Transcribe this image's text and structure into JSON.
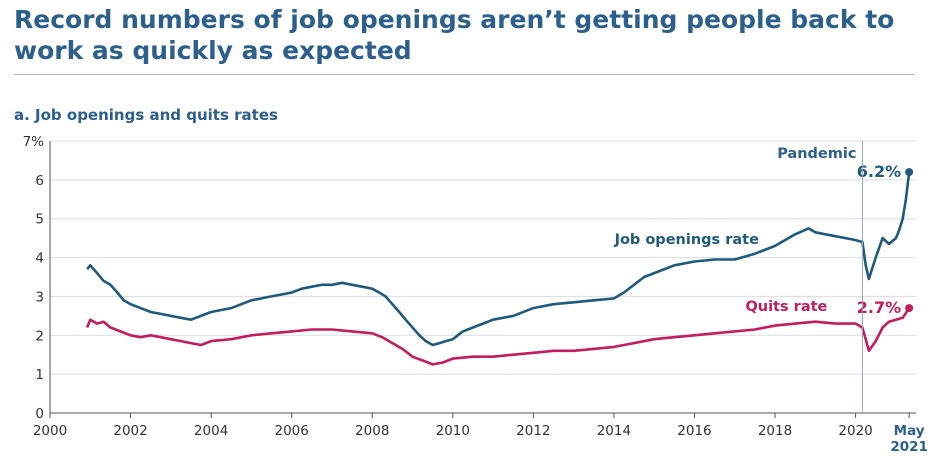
{
  "header": {
    "title": "Record numbers of job openings aren’t getting people back to work as quickly as expected",
    "subtitle": "a. Job openings and quits rates"
  },
  "colors": {
    "title": "#2d5f8c",
    "job_openings": "#1f5a7d",
    "quits": "#c21d5c",
    "grid": "#d8dde2",
    "pandemic_line": "#8fa8bf"
  },
  "chart_data": {
    "type": "line",
    "x_unit": "year",
    "xlim": [
      2000,
      2021.5
    ],
    "ylim": [
      0,
      7
    ],
    "y_ticks": [
      {
        "value": 0,
        "label": "0"
      },
      {
        "value": 1,
        "label": "1"
      },
      {
        "value": 2,
        "label": "2"
      },
      {
        "value": 3,
        "label": "3"
      },
      {
        "value": 4,
        "label": "4"
      },
      {
        "value": 5,
        "label": "5"
      },
      {
        "value": 6,
        "label": "6"
      },
      {
        "value": 7,
        "label": "7%"
      }
    ],
    "x_ticks": [
      {
        "value": 2000,
        "label": "2000"
      },
      {
        "value": 2002,
        "label": "2002"
      },
      {
        "value": 2004,
        "label": "2004"
      },
      {
        "value": 2006,
        "label": "2006"
      },
      {
        "value": 2008,
        "label": "2008"
      },
      {
        "value": 2010,
        "label": "2010"
      },
      {
        "value": 2012,
        "label": "2012"
      },
      {
        "value": 2014,
        "label": "2014"
      },
      {
        "value": 2016,
        "label": "2016"
      },
      {
        "value": 2018,
        "label": "2018"
      },
      {
        "value": 2020,
        "label": "2020"
      }
    ],
    "end_tick": {
      "value": 2021.33,
      "label": "May",
      "label2": "2021"
    },
    "grid": "horizontal",
    "annotations": {
      "pandemic": {
        "x": 2020.17,
        "label": "Pandemic"
      }
    },
    "series": [
      {
        "name": "Job openings rate",
        "color": "#1f5a7d",
        "end_label": "6.2%",
        "points": [
          [
            2000.92,
            3.7
          ],
          [
            2001.0,
            3.8
          ],
          [
            2001.17,
            3.6
          ],
          [
            2001.33,
            3.4
          ],
          [
            2001.5,
            3.3
          ],
          [
            2001.67,
            3.1
          ],
          [
            2001.83,
            2.9
          ],
          [
            2002.0,
            2.8
          ],
          [
            2002.25,
            2.7
          ],
          [
            2002.5,
            2.6
          ],
          [
            2002.75,
            2.55
          ],
          [
            2003.0,
            2.5
          ],
          [
            2003.25,
            2.45
          ],
          [
            2003.5,
            2.4
          ],
          [
            2003.75,
            2.5
          ],
          [
            2004.0,
            2.6
          ],
          [
            2004.25,
            2.65
          ],
          [
            2004.5,
            2.7
          ],
          [
            2004.75,
            2.8
          ],
          [
            2005.0,
            2.9
          ],
          [
            2005.25,
            2.95
          ],
          [
            2005.5,
            3.0
          ],
          [
            2005.75,
            3.05
          ],
          [
            2006.0,
            3.1
          ],
          [
            2006.25,
            3.2
          ],
          [
            2006.5,
            3.25
          ],
          [
            2006.75,
            3.3
          ],
          [
            2007.0,
            3.3
          ],
          [
            2007.25,
            3.35
          ],
          [
            2007.5,
            3.3
          ],
          [
            2007.75,
            3.25
          ],
          [
            2008.0,
            3.2
          ],
          [
            2008.17,
            3.1
          ],
          [
            2008.33,
            3.0
          ],
          [
            2008.5,
            2.8
          ],
          [
            2008.67,
            2.6
          ],
          [
            2008.83,
            2.4
          ],
          [
            2009.0,
            2.2
          ],
          [
            2009.17,
            2.0
          ],
          [
            2009.33,
            1.85
          ],
          [
            2009.5,
            1.75
          ],
          [
            2009.67,
            1.8
          ],
          [
            2009.83,
            1.85
          ],
          [
            2010.0,
            1.9
          ],
          [
            2010.25,
            2.1
          ],
          [
            2010.5,
            2.2
          ],
          [
            2010.75,
            2.3
          ],
          [
            2011.0,
            2.4
          ],
          [
            2011.5,
            2.5
          ],
          [
            2012.0,
            2.7
          ],
          [
            2012.5,
            2.8
          ],
          [
            2013.0,
            2.85
          ],
          [
            2013.5,
            2.9
          ],
          [
            2014.0,
            2.95
          ],
          [
            2014.25,
            3.1
          ],
          [
            2014.5,
            3.3
          ],
          [
            2014.75,
            3.5
          ],
          [
            2015.0,
            3.6
          ],
          [
            2015.5,
            3.8
          ],
          [
            2016.0,
            3.9
          ],
          [
            2016.5,
            3.95
          ],
          [
            2017.0,
            3.95
          ],
          [
            2017.5,
            4.1
          ],
          [
            2018.0,
            4.3
          ],
          [
            2018.5,
            4.6
          ],
          [
            2018.83,
            4.75
          ],
          [
            2019.0,
            4.65
          ],
          [
            2019.25,
            4.6
          ],
          [
            2019.5,
            4.55
          ],
          [
            2019.75,
            4.5
          ],
          [
            2020.0,
            4.45
          ],
          [
            2020.17,
            4.4
          ],
          [
            2020.25,
            3.8
          ],
          [
            2020.33,
            3.45
          ],
          [
            2020.5,
            4.0
          ],
          [
            2020.67,
            4.5
          ],
          [
            2020.83,
            4.35
          ],
          [
            2021.0,
            4.5
          ],
          [
            2021.08,
            4.7
          ],
          [
            2021.17,
            5.0
          ],
          [
            2021.25,
            5.5
          ],
          [
            2021.33,
            6.2
          ]
        ]
      },
      {
        "name": "Quits rate",
        "color": "#c21d5c",
        "end_label": "2.7%",
        "points": [
          [
            2000.92,
            2.2
          ],
          [
            2001.0,
            2.4
          ],
          [
            2001.17,
            2.3
          ],
          [
            2001.33,
            2.35
          ],
          [
            2001.5,
            2.2
          ],
          [
            2001.75,
            2.1
          ],
          [
            2002.0,
            2.0
          ],
          [
            2002.25,
            1.95
          ],
          [
            2002.5,
            2.0
          ],
          [
            2002.75,
            1.95
          ],
          [
            2003.0,
            1.9
          ],
          [
            2003.25,
            1.85
          ],
          [
            2003.5,
            1.8
          ],
          [
            2003.75,
            1.75
          ],
          [
            2004.0,
            1.85
          ],
          [
            2004.5,
            1.9
          ],
          [
            2005.0,
            2.0
          ],
          [
            2005.5,
            2.05
          ],
          [
            2006.0,
            2.1
          ],
          [
            2006.5,
            2.15
          ],
          [
            2007.0,
            2.15
          ],
          [
            2007.5,
            2.1
          ],
          [
            2008.0,
            2.05
          ],
          [
            2008.25,
            1.95
          ],
          [
            2008.5,
            1.8
          ],
          [
            2008.75,
            1.65
          ],
          [
            2009.0,
            1.45
          ],
          [
            2009.25,
            1.35
          ],
          [
            2009.5,
            1.25
          ],
          [
            2009.75,
            1.3
          ],
          [
            2010.0,
            1.4
          ],
          [
            2010.5,
            1.45
          ],
          [
            2011.0,
            1.45
          ],
          [
            2011.5,
            1.5
          ],
          [
            2012.0,
            1.55
          ],
          [
            2012.5,
            1.6
          ],
          [
            2013.0,
            1.6
          ],
          [
            2013.5,
            1.65
          ],
          [
            2014.0,
            1.7
          ],
          [
            2014.5,
            1.8
          ],
          [
            2015.0,
            1.9
          ],
          [
            2015.5,
            1.95
          ],
          [
            2016.0,
            2.0
          ],
          [
            2016.5,
            2.05
          ],
          [
            2017.0,
            2.1
          ],
          [
            2017.5,
            2.15
          ],
          [
            2018.0,
            2.25
          ],
          [
            2018.5,
            2.3
          ],
          [
            2019.0,
            2.35
          ],
          [
            2019.5,
            2.3
          ],
          [
            2020.0,
            2.3
          ],
          [
            2020.17,
            2.2
          ],
          [
            2020.25,
            1.9
          ],
          [
            2020.33,
            1.6
          ],
          [
            2020.5,
            1.85
          ],
          [
            2020.67,
            2.2
          ],
          [
            2020.83,
            2.35
          ],
          [
            2021.0,
            2.4
          ],
          [
            2021.17,
            2.45
          ],
          [
            2021.33,
            2.7
          ]
        ]
      }
    ]
  }
}
